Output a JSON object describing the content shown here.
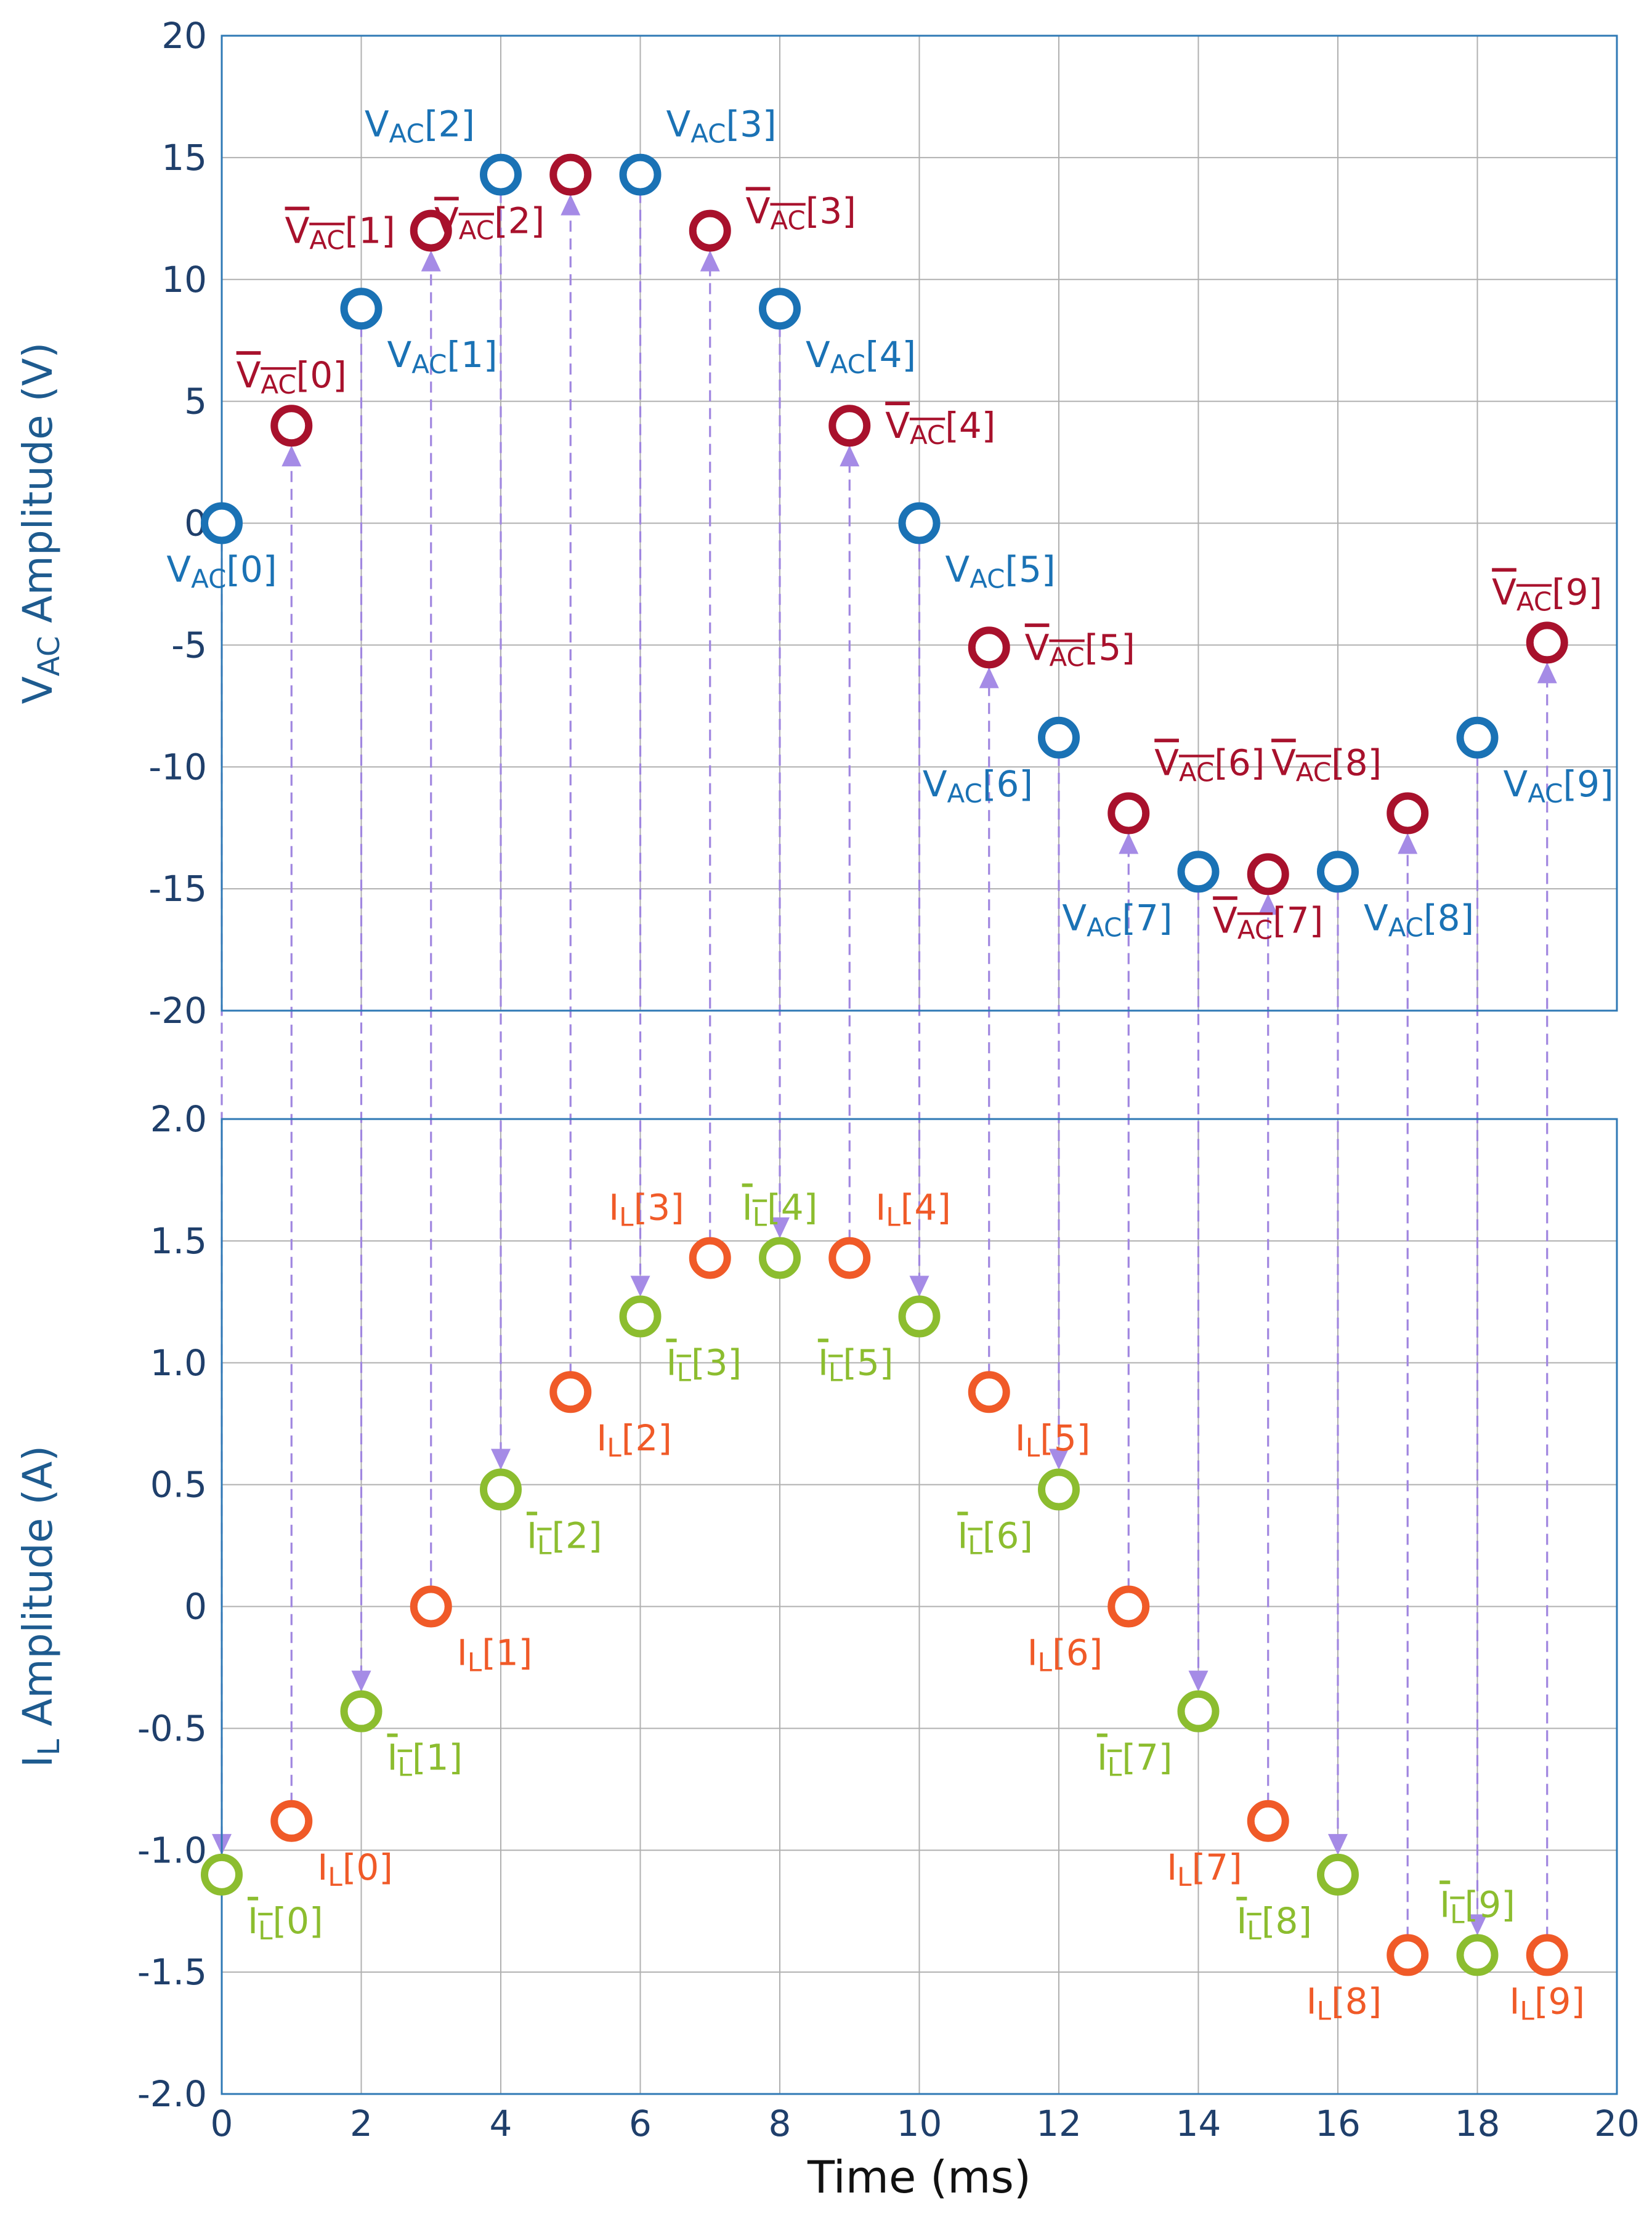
{
  "chart_data": [
    {
      "type": "scatter",
      "ylabel": "V",
      "ylabel_sub": "AC",
      "ylabel_rest": " Amplitude (V)",
      "xlim": [
        0,
        20
      ],
      "ylim": [
        -20,
        20
      ],
      "xticks": [
        "0",
        "2",
        "4",
        "6",
        "8",
        "10",
        "12",
        "14",
        "16",
        "18",
        "20"
      ],
      "yticks": [
        "20",
        "15",
        "10",
        "5",
        "0",
        "-5",
        "-10",
        "-15",
        "-20"
      ],
      "grid": true,
      "series": [
        {
          "color": "#1a72b5",
          "label_base": "V",
          "label_sub": "AC",
          "overline": false,
          "points": [
            {
              "x": 0,
              "y": 0,
              "index": "[0]",
              "pos": "below"
            },
            {
              "x": 2,
              "y": 8.8,
              "index": "[1]",
              "pos": "below-right"
            },
            {
              "x": 4,
              "y": 14.3,
              "index": "[2]",
              "pos": "above-left"
            },
            {
              "x": 6,
              "y": 14.3,
              "index": "[3]",
              "pos": "above-right"
            },
            {
              "x": 8,
              "y": 8.8,
              "index": "[4]",
              "pos": "below-right"
            },
            {
              "x": 10,
              "y": 0,
              "index": "[5]",
              "pos": "below-right"
            },
            {
              "x": 12,
              "y": -8.8,
              "index": "[6]",
              "pos": "below-left"
            },
            {
              "x": 14,
              "y": -14.3,
              "index": "[7]",
              "pos": "below-left"
            },
            {
              "x": 16,
              "y": -14.3,
              "index": "[8]",
              "pos": "below-right"
            },
            {
              "x": 18,
              "y": -8.8,
              "index": "[9]",
              "pos": "below-right"
            }
          ]
        },
        {
          "color": "#a8112c",
          "label_base": "V",
          "label_sub": "AC",
          "overline": true,
          "points": [
            {
              "x": 1,
              "y": 4.0,
              "index": "[0]",
              "pos": "above"
            },
            {
              "x": 3,
              "y": 12.0,
              "index": "[1]",
              "pos": "left"
            },
            {
              "x": 5,
              "y": 14.3,
              "index": "[2]",
              "pos": "below-left"
            },
            {
              "x": 7,
              "y": 12.0,
              "index": "[3]",
              "pos": "right-up"
            },
            {
              "x": 9,
              "y": 4.0,
              "index": "[4]",
              "pos": "right"
            },
            {
              "x": 11,
              "y": -5.1,
              "index": "[5]",
              "pos": "right"
            },
            {
              "x": 13,
              "y": -11.9,
              "index": "[6]",
              "pos": "above-right"
            },
            {
              "x": 15,
              "y": -14.4,
              "index": "[7]",
              "pos": "below"
            },
            {
              "x": 17,
              "y": -11.9,
              "index": "[8]",
              "pos": "above-left"
            },
            {
              "x": 19,
              "y": -4.9,
              "index": "[9]",
              "pos": "above"
            }
          ]
        }
      ]
    },
    {
      "type": "scatter",
      "ylabel": "I",
      "ylabel_sub": "L",
      "ylabel_rest": " Amplitude (A)",
      "xlabel": "Time (ms)",
      "xlim": [
        0,
        20
      ],
      "ylim": [
        -2.0,
        2.0
      ],
      "xticks": [
        "0",
        "2",
        "4",
        "6",
        "8",
        "10",
        "12",
        "14",
        "16",
        "18",
        "20"
      ],
      "yticks": [
        "2.0",
        "1.5",
        "1.0",
        "0.5",
        "0",
        "-0.5",
        "-1.0",
        "-1.5",
        "-2.0"
      ],
      "grid": true,
      "series": [
        {
          "color": "#f05a28",
          "label_base": "I",
          "label_sub": "L",
          "overline": false,
          "points": [
            {
              "x": 1,
              "y": -0.88,
              "index": "[0]",
              "pos": "below-right"
            },
            {
              "x": 3,
              "y": 0.0,
              "index": "[1]",
              "pos": "below-right"
            },
            {
              "x": 5,
              "y": 0.88,
              "index": "[2]",
              "pos": "below-right"
            },
            {
              "x": 7,
              "y": 1.43,
              "index": "[3]",
              "pos": "above-left"
            },
            {
              "x": 9,
              "y": 1.43,
              "index": "[4]",
              "pos": "above-right"
            },
            {
              "x": 11,
              "y": 0.88,
              "index": "[5]",
              "pos": "below-right"
            },
            {
              "x": 13,
              "y": 0.0,
              "index": "[6]",
              "pos": "below-left"
            },
            {
              "x": 15,
              "y": -0.88,
              "index": "[7]",
              "pos": "below-left"
            },
            {
              "x": 17,
              "y": -1.43,
              "index": "[8]",
              "pos": "below-left"
            },
            {
              "x": 19,
              "y": -1.43,
              "index": "[9]",
              "pos": "below"
            }
          ]
        },
        {
          "color": "#8cbd2f",
          "label_base": "I",
          "label_sub": "L",
          "overline": true,
          "points": [
            {
              "x": 0,
              "y": -1.1,
              "index": "[0]",
              "pos": "below-right"
            },
            {
              "x": 2,
              "y": -0.43,
              "index": "[1]",
              "pos": "below-right"
            },
            {
              "x": 4,
              "y": 0.48,
              "index": "[2]",
              "pos": "below-right"
            },
            {
              "x": 6,
              "y": 1.19,
              "index": "[3]",
              "pos": "below-right"
            },
            {
              "x": 8,
              "y": 1.43,
              "index": "[4]",
              "pos": "above"
            },
            {
              "x": 10,
              "y": 1.19,
              "index": "[5]",
              "pos": "below-left"
            },
            {
              "x": 12,
              "y": 0.48,
              "index": "[6]",
              "pos": "below-left"
            },
            {
              "x": 14,
              "y": -0.43,
              "index": "[7]",
              "pos": "below-left"
            },
            {
              "x": 16,
              "y": -1.1,
              "index": "[8]",
              "pos": "below-left"
            },
            {
              "x": 18,
              "y": -1.43,
              "index": "[9]",
              "pos": "above"
            }
          ]
        }
      ]
    }
  ]
}
